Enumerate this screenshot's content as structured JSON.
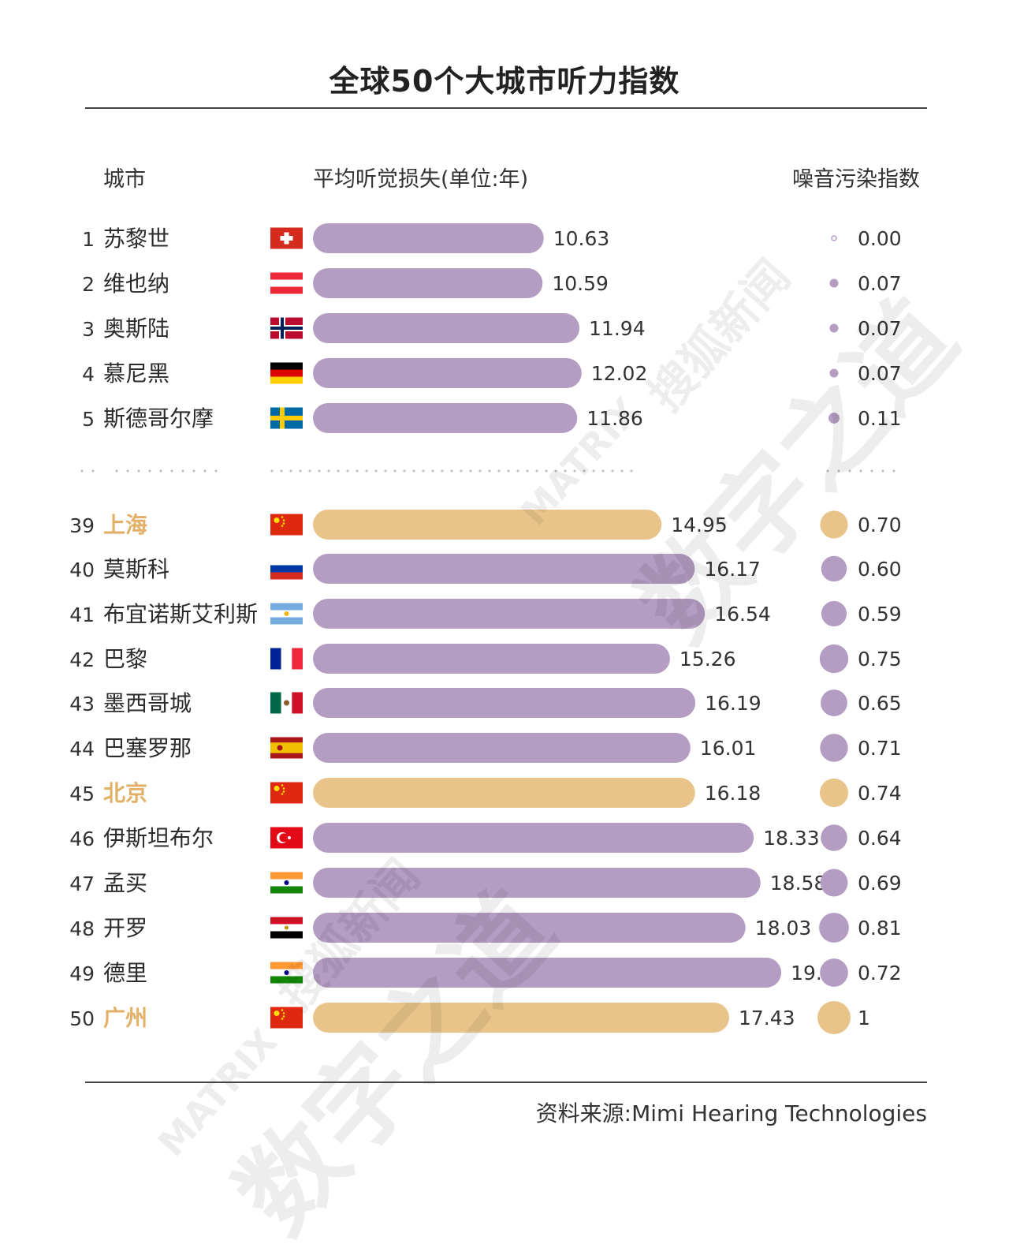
{
  "title": "全球50个大城市听力指数",
  "columns": {
    "city": "城市",
    "loss": "平均听觉损失(单位:年)",
    "noise": "噪音污染指数"
  },
  "source": "资料来源:Mimi Hearing Technologies",
  "colors": {
    "bar_default": "#b39dc3",
    "bar_china": "#e9c48a",
    "city_china_text": "#e2b067",
    "dots": "#bbbbbb"
  },
  "chart_data": {
    "type": "bar",
    "orientation": "horizontal",
    "title": "全球50个大城市听力指数",
    "series": [
      {
        "name": "平均听觉损失(单位:年)",
        "values": [
          10.63,
          10.59,
          11.94,
          12.02,
          11.86,
          14.95,
          16.17,
          16.54,
          15.26,
          16.19,
          16.01,
          16.18,
          18.33,
          18.58,
          18.03,
          19.34,
          17.43
        ]
      },
      {
        "name": "噪音污染指数",
        "values": [
          0.0,
          0.07,
          0.07,
          0.07,
          0.11,
          0.7,
          0.6,
          0.59,
          0.75,
          0.65,
          0.71,
          0.74,
          0.64,
          0.69,
          0.81,
          0.72,
          1
        ]
      }
    ],
    "rows": [
      {
        "rank": "1",
        "city": "苏黎世",
        "flag": "switzerland",
        "loss": "10.63",
        "noise": "0.00",
        "china": false
      },
      {
        "rank": "2",
        "city": "维也纳",
        "flag": "austria",
        "loss": "10.59",
        "noise": "0.07",
        "china": false
      },
      {
        "rank": "3",
        "city": "奥斯陆",
        "flag": "norway",
        "loss": "11.94",
        "noise": "0.07",
        "china": false
      },
      {
        "rank": "4",
        "city": "慕尼黑",
        "flag": "germany",
        "loss": "12.02",
        "noise": "0.07",
        "china": false
      },
      {
        "rank": "5",
        "city": "斯德哥尔摩",
        "flag": "sweden",
        "loss": "11.86",
        "noise": "0.11",
        "china": false
      },
      {
        "rank": "39",
        "city": "上海",
        "flag": "china",
        "loss": "14.95",
        "noise": "0.70",
        "china": true
      },
      {
        "rank": "40",
        "city": "莫斯科",
        "flag": "russia",
        "loss": "16.17",
        "noise": "0.60",
        "china": false
      },
      {
        "rank": "41",
        "city": "布宜诺斯艾利斯",
        "flag": "argentina",
        "loss": "16.54",
        "noise": "0.59",
        "china": false
      },
      {
        "rank": "42",
        "city": "巴黎",
        "flag": "france",
        "loss": "15.26",
        "noise": "0.75",
        "china": false
      },
      {
        "rank": "43",
        "city": "墨西哥城",
        "flag": "mexico",
        "loss": "16.19",
        "noise": "0.65",
        "china": false
      },
      {
        "rank": "44",
        "city": "巴塞罗那",
        "flag": "spain",
        "loss": "16.01",
        "noise": "0.71",
        "china": false
      },
      {
        "rank": "45",
        "city": "北京",
        "flag": "china",
        "loss": "16.18",
        "noise": "0.74",
        "china": true
      },
      {
        "rank": "46",
        "city": "伊斯坦布尔",
        "flag": "turkey",
        "loss": "18.33",
        "noise": "0.64",
        "china": false
      },
      {
        "rank": "47",
        "city": "孟买",
        "flag": "india",
        "loss": "18.58",
        "noise": "0.69",
        "china": false
      },
      {
        "rank": "48",
        "city": "开罗",
        "flag": "egypt",
        "loss": "18.03",
        "noise": "0.81",
        "china": false
      },
      {
        "rank": "49",
        "city": "德里",
        "flag": "india",
        "loss": "19.34",
        "noise": "0.72",
        "china": false
      },
      {
        "rank": "50",
        "city": "广州",
        "flag": "china",
        "loss": "17.43",
        "noise": "1",
        "china": true
      }
    ]
  },
  "watermarks": [
    "MATRIX",
    "搜狐新闻",
    "数字之道"
  ]
}
